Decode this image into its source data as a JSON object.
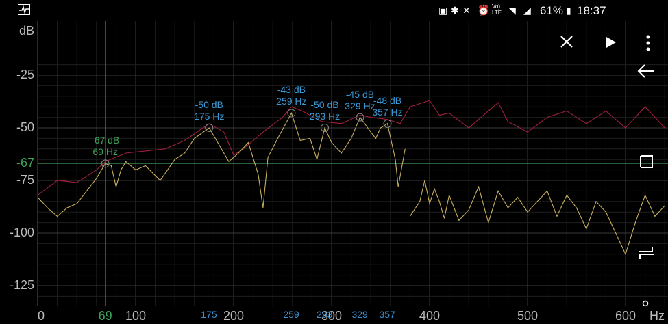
{
  "status_bar": {
    "battery_percent": "61%",
    "time": "18:37",
    "volte_label": "Vo)\nLTE"
  },
  "toolbar": {
    "icons": [
      "pulse-icon",
      "close-icon",
      "play-icon",
      "more-vert-icon"
    ]
  },
  "nav": {
    "icons": [
      "back-icon",
      "recents-icon",
      "switch-icon",
      "home-dot-icon"
    ]
  },
  "chart_data": {
    "type": "line",
    "y_unit": "dB",
    "x_unit": "Hz",
    "ylim": [
      -135,
      -20
    ],
    "xlim": [
      0,
      640
    ],
    "y_ticks": [
      {
        "value": -25,
        "label": "-25"
      },
      {
        "value": -50,
        "label": "-50"
      },
      {
        "value": -67,
        "label": "-67",
        "highlight": true
      },
      {
        "value": -75,
        "label": "-75"
      },
      {
        "value": -100,
        "label": "-100"
      },
      {
        "value": -125,
        "label": "-125"
      }
    ],
    "x_ticks": [
      {
        "value": 0,
        "label": "0"
      },
      {
        "value": 69,
        "label": "69",
        "highlight": true
      },
      {
        "value": 100,
        "label": "100"
      },
      {
        "value": 200,
        "label": "200"
      },
      {
        "value": 300,
        "label": "300"
      },
      {
        "value": 400,
        "label": "400"
      },
      {
        "value": 500,
        "label": "500"
      },
      {
        "value": 600,
        "label": "600"
      }
    ],
    "peak_ticks": [
      "175",
      "259",
      "293",
      "329",
      "357"
    ],
    "grid": true,
    "peaks": [
      {
        "db_label": "-67 dB",
        "hz_label": "69 Hz",
        "x": 69,
        "y": -67,
        "color": "green"
      },
      {
        "db_label": "-50 dB",
        "hz_label": "175 Hz",
        "x": 175,
        "y": -50
      },
      {
        "db_label": "-43 dB",
        "hz_label": "259 Hz",
        "x": 259,
        "y": -43
      },
      {
        "db_label": "-50 dB",
        "hz_label": "293 Hz",
        "x": 293,
        "y": -50
      },
      {
        "db_label": "-45 dB",
        "hz_label": "329 Hz",
        "x": 329,
        "y": -45
      },
      {
        "db_label": "-48 dB",
        "hz_label": "357 Hz",
        "x": 357,
        "y": -48
      }
    ],
    "series": [
      {
        "color": "#a0203c",
        "x": [
          0,
          20,
          40,
          60,
          69,
          90,
          110,
          130,
          150,
          175,
          190,
          200,
          210,
          230,
          250,
          259,
          270,
          290,
          310,
          329,
          340,
          357,
          370,
          380,
          400,
          410,
          420,
          440,
          460,
          470,
          480,
          500,
          520,
          540,
          560,
          580,
          600,
          620,
          640
        ],
        "y": [
          -82,
          -75,
          -76,
          -70,
          -66,
          -62,
          -61,
          -60,
          -56,
          -48,
          -52,
          -63,
          -60,
          -52,
          -45,
          -40,
          -42,
          -47,
          -48,
          -44,
          -45,
          -46,
          -48,
          -40,
          -37,
          -44,
          -43,
          -50,
          -42,
          -38,
          -47,
          -52,
          -45,
          -42,
          -48,
          -42,
          -50,
          -40,
          -50
        ]
      },
      {
        "color": "#c9b060",
        "x": [
          0,
          10,
          20,
          30,
          40,
          50,
          60,
          69,
          75,
          80,
          85,
          90,
          100,
          110,
          125,
          140,
          150,
          160,
          175,
          185,
          195,
          205,
          215,
          225,
          230,
          235,
          245,
          259,
          268,
          278,
          285,
          293,
          300,
          310,
          320,
          329,
          340,
          345,
          350,
          357,
          365,
          368,
          375
        ],
        "y": [
          -83,
          -88,
          -92,
          -88,
          -86,
          -80,
          -74,
          -67,
          -68,
          -78,
          -70,
          -66,
          -70,
          -68,
          -75,
          -65,
          -62,
          -55,
          -50,
          -58,
          -66,
          -62,
          -57,
          -72,
          -88,
          -64,
          -55,
          -43,
          -56,
          -55,
          -65,
          -50,
          -57,
          -62,
          -55,
          -45,
          -52,
          -55,
          -50,
          -48,
          -65,
          -78,
          -60
        ]
      },
      {
        "color": "#c9b060",
        "x": [
          380,
          390,
          395,
          400,
          405,
          410,
          415,
          420,
          430,
          440,
          450,
          460,
          470,
          480,
          490,
          500,
          510,
          520,
          530,
          540,
          550,
          560,
          570,
          580,
          590,
          600,
          610,
          620,
          630,
          640
        ],
        "y": [
          -92,
          -85,
          -75,
          -86,
          -79,
          -85,
          -93,
          -82,
          -94,
          -89,
          -78,
          -95,
          -80,
          -88,
          -83,
          -90,
          -85,
          -80,
          -92,
          -82,
          -88,
          -98,
          -85,
          -90,
          -100,
          -110,
          -95,
          -82,
          -92,
          -87
        ]
      }
    ]
  }
}
